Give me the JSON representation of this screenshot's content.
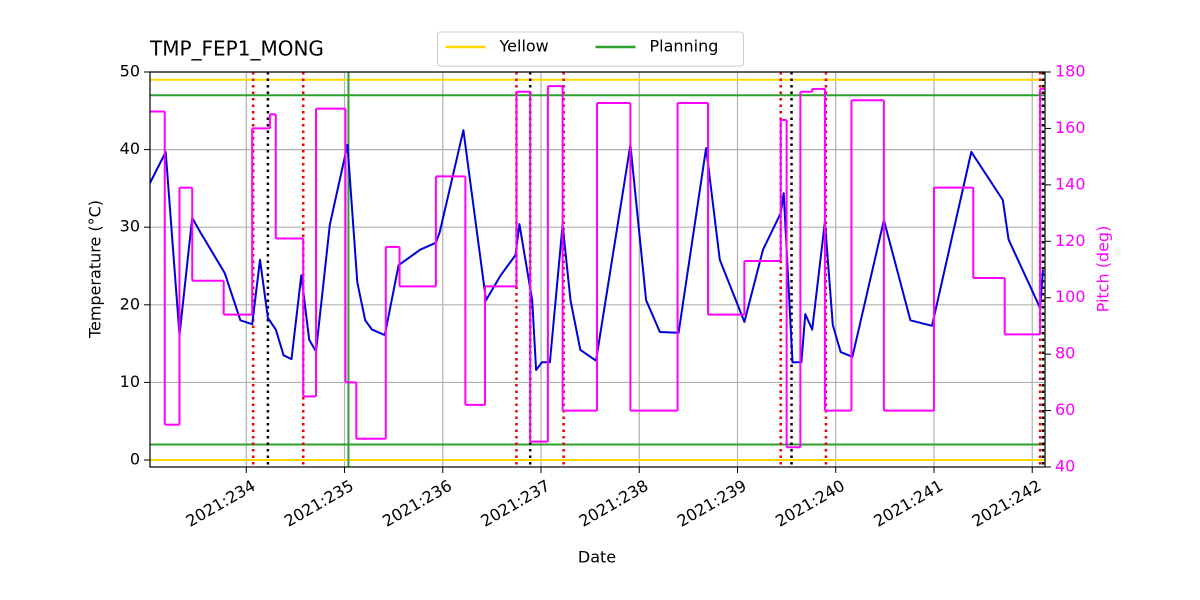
{
  "chart_data": {
    "type": "line",
    "title": "TMP_FEP1_MONG",
    "xlabel": "Date",
    "ylabel": "Temperature (°C)",
    "y2label": "Pitch (deg)",
    "xlim": [
      233.02,
      242.13
    ],
    "ylim": [
      -0.9,
      50
    ],
    "y2lim": [
      40,
      180
    ],
    "xticks": [
      {
        "value": 234,
        "label": "2021:234"
      },
      {
        "value": 235,
        "label": "2021:235"
      },
      {
        "value": 236,
        "label": "2021:236"
      },
      {
        "value": 237,
        "label": "2021:237"
      },
      {
        "value": 238,
        "label": "2021:238"
      },
      {
        "value": 239,
        "label": "2021:239"
      },
      {
        "value": 240,
        "label": "2021:240"
      },
      {
        "value": 241,
        "label": "2021:241"
      },
      {
        "value": 242,
        "label": "2021:242"
      }
    ],
    "yticks": [
      0,
      10,
      20,
      30,
      40,
      50
    ],
    "y2ticks": [
      40,
      60,
      80,
      100,
      120,
      140,
      160,
      180
    ],
    "grid": true,
    "legend": "upper center",
    "series": [
      {
        "color": "#0000dd",
        "x": [
          233.02,
          233.18,
          233.32,
          233.45,
          233.53,
          233.78,
          233.94,
          234.06,
          234.14,
          234.22,
          234.3,
          234.38,
          234.46,
          234.56,
          234.64,
          234.71,
          234.85,
          235.03,
          235.13,
          235.21,
          235.28,
          235.41,
          235.55,
          235.77,
          235.93,
          235.97,
          236.21,
          236.44,
          236.59,
          236.74,
          236.78,
          236.91,
          236.95,
          237.01,
          237.09,
          237.22,
          237.3,
          237.4,
          237.56,
          237.91,
          238.07,
          238.21,
          238.4,
          238.68,
          238.82,
          239.07,
          239.26,
          239.44,
          239.47,
          239.56,
          239.65,
          239.69,
          239.76,
          239.89,
          239.97,
          240.05,
          240.17,
          240.49,
          240.76,
          240.98,
          241.38,
          241.7,
          241.76,
          242.08,
          242.11
        ],
        "values": [
          35.7,
          39.7,
          16.1,
          31.2,
          29.4,
          24.1,
          18.0,
          17.5,
          25.8,
          18.3,
          16.8,
          13.5,
          13.0,
          23.8,
          15.5,
          14.0,
          30.3,
          40.6,
          22.9,
          18.0,
          16.8,
          16.1,
          25.1,
          27.1,
          28.0,
          29.4,
          42.5,
          20.6,
          23.8,
          26.4,
          30.4,
          20.6,
          11.6,
          12.6,
          12.6,
          30.3,
          20.6,
          14.2,
          12.8,
          40.6,
          20.6,
          16.5,
          16.4,
          40.2,
          25.8,
          17.8,
          27.1,
          31.8,
          34.4,
          12.6,
          12.6,
          18.8,
          16.8,
          30.7,
          17.4,
          13.9,
          13.3,
          30.9,
          18.0,
          17.3,
          39.7,
          33.5,
          28.4,
          19.6,
          24.5
        ]
      },
      {
        "color": "#ff00ff",
        "axis": "y2",
        "step": "post",
        "x": [
          233.02,
          233.17,
          233.32,
          233.45,
          233.77,
          234.06,
          234.24,
          234.3,
          234.58,
          234.71,
          235.01,
          235.12,
          235.42,
          235.56,
          235.93,
          236.23,
          236.43,
          236.75,
          236.89,
          237.07,
          237.22,
          237.57,
          237.91,
          238.39,
          238.7,
          239.07,
          239.44,
          239.5,
          239.64,
          239.76,
          239.89,
          240.16,
          240.49,
          241.0,
          241.4,
          241.72,
          242.08
        ],
        "values": [
          166,
          55,
          139,
          106,
          94,
          160,
          165,
          121,
          65,
          167,
          70,
          50,
          118,
          104,
          143,
          62,
          104,
          173,
          49,
          175,
          60,
          169,
          60,
          169,
          94,
          113,
          163,
          47,
          173,
          174,
          60,
          170,
          60,
          139,
          107,
          87,
          174
        ]
      }
    ],
    "limits": [
      {
        "name": "Yellow",
        "color": "#ffd700",
        "values": [
          49,
          0
        ]
      },
      {
        "name": "Planning",
        "color": "#2ca02c",
        "values": [
          47,
          2
        ]
      }
    ],
    "vlines": [
      {
        "x": 234.07,
        "color": "#ee0000",
        "style": "dotted"
      },
      {
        "x": 234.58,
        "color": "#ee0000",
        "style": "dotted"
      },
      {
        "x": 236.75,
        "color": "#ee0000",
        "style": "dotted"
      },
      {
        "x": 237.23,
        "color": "#ee0000",
        "style": "dotted"
      },
      {
        "x": 239.44,
        "color": "#ee0000",
        "style": "dotted"
      },
      {
        "x": 239.9,
        "color": "#ee0000",
        "style": "dotted"
      },
      {
        "x": 242.08,
        "color": "#ee0000",
        "style": "dotted"
      },
      {
        "x": 234.22,
        "color": "#000000",
        "style": "dotted"
      },
      {
        "x": 236.89,
        "color": "#000000",
        "style": "dotted"
      },
      {
        "x": 239.55,
        "color": "#000000",
        "style": "dotted"
      },
      {
        "x": 242.11,
        "color": "#000000",
        "style": "dotted"
      },
      {
        "x": 235.04,
        "color": "#2ca02c",
        "style": "solid"
      }
    ]
  }
}
